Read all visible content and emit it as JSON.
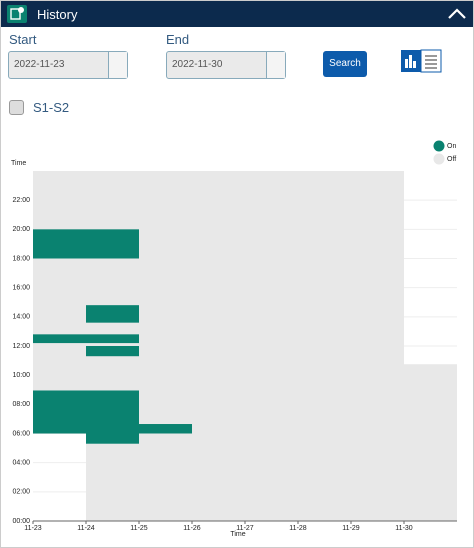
{
  "header": {
    "title": "History"
  },
  "form": {
    "start_label": "Start",
    "start_value": "2022-11-23",
    "end_label": "End",
    "end_value": "2022-11-30",
    "search": "Search",
    "checkbox_label": "S1-S2"
  },
  "chart_data": {
    "type": "range",
    "y_label": "Time",
    "x_label": "Time",
    "xlim": [
      0,
      8
    ],
    "xticks": [
      {
        "value": 0,
        "label": "11-23"
      },
      {
        "value": 1,
        "label": "11-24"
      },
      {
        "value": 2,
        "label": "11-25"
      },
      {
        "value": 3,
        "label": "11-26"
      },
      {
        "value": 4,
        "label": "11-27"
      },
      {
        "value": 5,
        "label": "11-28"
      },
      {
        "value": 6,
        "label": "11-29"
      },
      {
        "value": 7,
        "label": "11-30"
      }
    ],
    "ylim": [
      0,
      24
    ],
    "yticks": [
      {
        "value": 0,
        "label": "00:00"
      },
      {
        "value": 2,
        "label": "02:00"
      },
      {
        "value": 4,
        "label": "04:00"
      },
      {
        "value": 6,
        "label": "06:00"
      },
      {
        "value": 8,
        "label": "08:00"
      },
      {
        "value": 10,
        "label": "10:00"
      },
      {
        "value": 12,
        "label": "12:00"
      },
      {
        "value": 14,
        "label": "14:00"
      },
      {
        "value": 16,
        "label": "16:00"
      },
      {
        "value": 18,
        "label": "18:00"
      },
      {
        "value": 20,
        "label": "20:00"
      },
      {
        "value": 22,
        "label": "22:00"
      }
    ],
    "grid": true,
    "series": [
      {
        "name": "Off",
        "color": "#e8e8e8",
        "segments": [
          {
            "x": [
              0,
              1
            ],
            "y": [
              6,
              24
            ]
          },
          {
            "x": [
              1,
              7
            ],
            "y": [
              0,
              24
            ]
          },
          {
            "x": [
              7,
              8
            ],
            "y": [
              0,
              10.75
            ]
          }
        ]
      },
      {
        "name": "On",
        "color": "#0a8270",
        "segments": [
          {
            "x": [
              0,
              2
            ],
            "y": [
              18,
              20
            ]
          },
          {
            "x": [
              1,
              2
            ],
            "y": [
              13.6,
              14.8
            ]
          },
          {
            "x": [
              0,
              2
            ],
            "y": [
              12.2,
              12.8
            ]
          },
          {
            "x": [
              1,
              2
            ],
            "y": [
              11.3,
              12
            ]
          },
          {
            "x": [
              0,
              2
            ],
            "y": [
              6,
              8.95
            ]
          },
          {
            "x": [
              1,
              2
            ],
            "y": [
              5.3,
              6
            ]
          },
          {
            "x": [
              2,
              3
            ],
            "y": [
              6,
              6.65
            ]
          }
        ]
      }
    ]
  }
}
